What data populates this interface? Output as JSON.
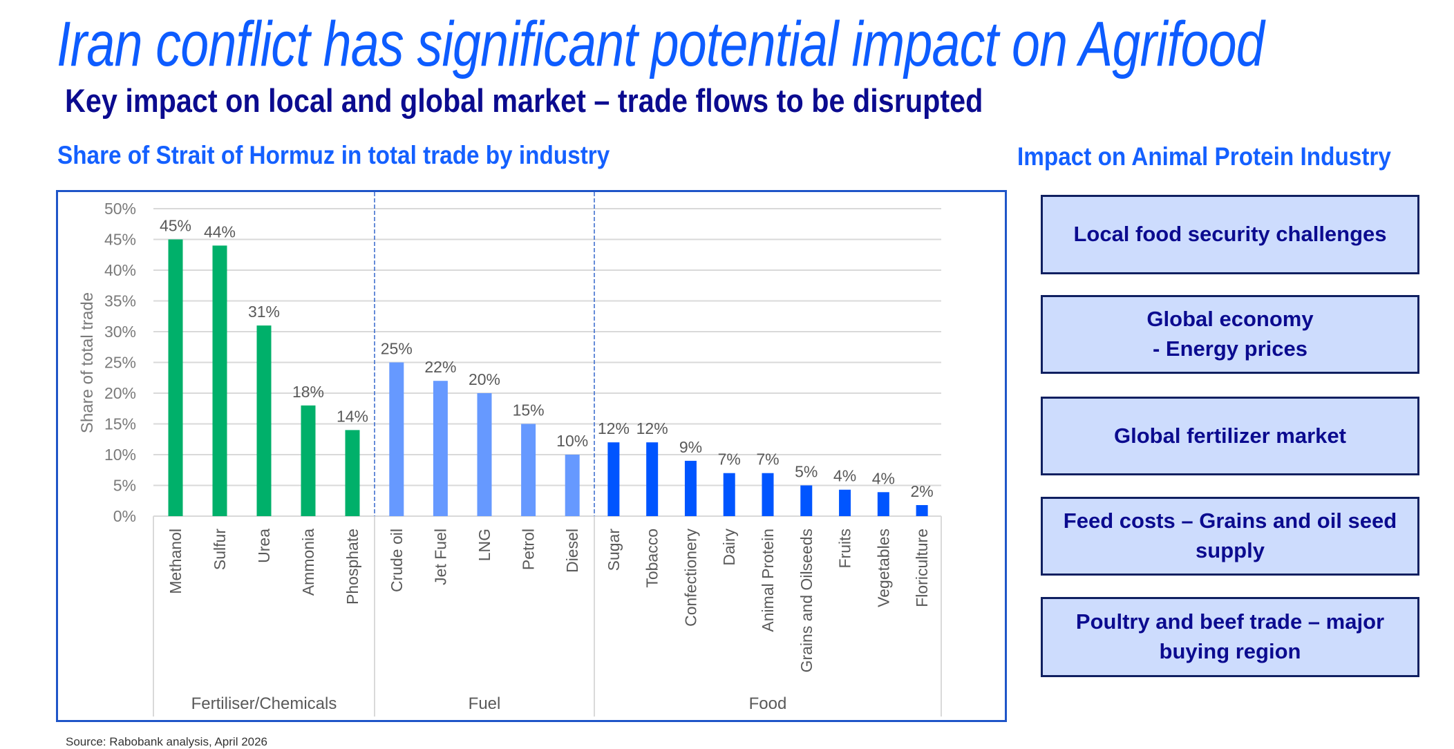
{
  "title": "Iran conflict has significant potential impact on Agrifood",
  "subtitle": "Key impact on local and global market – trade flows to be disrupted",
  "chart_heading": "Share of Strait of Hormuz in total trade by industry",
  "impact_heading": "Impact on Animal Protein Industry",
  "impact_items": [
    "Local food security challenges",
    "Global economy\n- Energy prices",
    "Global fertilizer market",
    "Feed costs – Grains and oil seed supply",
    "Poultry and beef trade – major buying region"
  ],
  "colors": {
    "title": "#0d5cff",
    "subtitle": "#0b0b8f",
    "box_fill": "#cddcfd",
    "box_border": "#0f1f60",
    "fertiliser": "#00b06a",
    "fuel": "#6699ff",
    "food": "#0055ff"
  },
  "source": "Source: Rabobank analysis, April 2026",
  "chart_data": {
    "type": "bar",
    "ylabel": "Share of total trade",
    "ylim": [
      0,
      50
    ],
    "yticks": [
      "0%",
      "5%",
      "10%",
      "15%",
      "20%",
      "25%",
      "30%",
      "35%",
      "40%",
      "45%",
      "50%"
    ],
    "grid": true,
    "groups": [
      {
        "name": "Fertiliser/Chemicals",
        "color": "#00b06a",
        "categories": [
          "Methanol",
          "Sulfur",
          "Urea",
          "Ammonia",
          "Phosphate"
        ],
        "values": [
          45,
          44,
          31,
          18,
          14
        ],
        "labels": [
          "45%",
          "44%",
          "31%",
          "18%",
          "14%"
        ]
      },
      {
        "name": "Fuel",
        "color": "#6699ff",
        "categories": [
          "Crude oil",
          "Jet Fuel",
          "LNG",
          "Petrol",
          "Diesel"
        ],
        "values": [
          25,
          22,
          20,
          15,
          10
        ],
        "labels": [
          "25%",
          "22%",
          "20%",
          "15%",
          "10%"
        ]
      },
      {
        "name": "Food",
        "color": "#0055ff",
        "categories": [
          "Sugar",
          "Tobacco",
          "Confectionery",
          "Dairy",
          "Animal Protein",
          "Grains and Oilseeds",
          "Fruits",
          "Vegetables",
          "Floriculture"
        ],
        "values": [
          12,
          12,
          9,
          7,
          7,
          5,
          4.3,
          3.9,
          1.8
        ],
        "labels": [
          "12%",
          "12%",
          "9%",
          "7%",
          "7%",
          "5%",
          "4%",
          "4%",
          "2%"
        ]
      }
    ]
  }
}
